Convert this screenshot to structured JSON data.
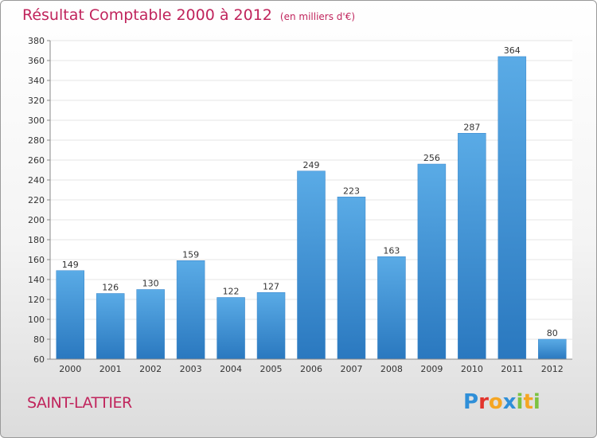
{
  "header": {
    "title": "Résultat Comptable 2000 à 2012",
    "unit": "(en milliers d'€)"
  },
  "footer": {
    "commune": "SAINT-LATTIER",
    "logo_letters": [
      {
        "ch": "P",
        "color": "#2f8fd8"
      },
      {
        "ch": "r",
        "color": "#e2342d"
      },
      {
        "ch": "o",
        "color": "#f5a623"
      },
      {
        "ch": "x",
        "color": "#2f8fd8"
      },
      {
        "ch": "i",
        "color": "#7cc242"
      },
      {
        "ch": "t",
        "color": "#f5a623"
      },
      {
        "ch": "i",
        "color": "#7cc242"
      }
    ]
  },
  "colors": {
    "bar_top": "#5aabe6",
    "bar_bottom": "#2a78bf",
    "grid": "#e4e4e4",
    "axis": "#888888",
    "text": "#333333",
    "accent": "#c0245c"
  },
  "chart_data": {
    "type": "bar",
    "title": "Résultat Comptable 2000 à 2012",
    "xlabel": "",
    "ylabel": "",
    "categories": [
      "2000",
      "2001",
      "2002",
      "2003",
      "2004",
      "2005",
      "2006",
      "2007",
      "2008",
      "2009",
      "2010",
      "2011",
      "2012"
    ],
    "values": [
      149,
      126,
      130,
      159,
      122,
      127,
      249,
      223,
      163,
      256,
      287,
      364,
      80
    ],
    "ylim": [
      60,
      380
    ],
    "yticks": [
      60,
      80,
      100,
      120,
      140,
      160,
      180,
      200,
      220,
      240,
      260,
      280,
      300,
      320,
      340,
      360,
      380
    ],
    "grid": true,
    "legend": "none"
  }
}
